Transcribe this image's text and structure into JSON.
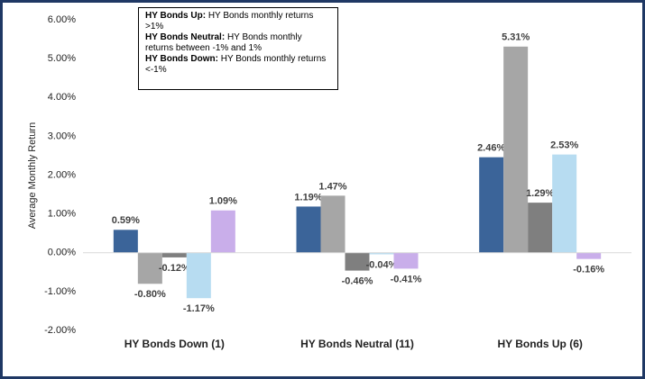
{
  "chart_data": {
    "type": "bar",
    "y_label": "Average Monthly Return",
    "categories": [
      "HY Bonds Down (1)",
      "HY Bonds Neutral (11)",
      "HY Bonds Up (6)"
    ],
    "series": [
      {
        "color": "#3b6499",
        "values": [
          0.59,
          1.19,
          2.46
        ],
        "value_labels": [
          "0.59%",
          "1.19%",
          "2.46%"
        ]
      },
      {
        "color": "#a6a6a6",
        "values": [
          -0.8,
          1.47,
          5.31
        ],
        "value_labels": [
          "-0.80%",
          "1.47%",
          "5.31%"
        ]
      },
      {
        "color": "#7f7f7f",
        "values": [
          -0.12,
          -0.46,
          1.29
        ],
        "value_labels": [
          "-0.12%",
          "-0.46%",
          "1.29%"
        ]
      },
      {
        "color": "#b7dcf1",
        "values": [
          -1.17,
          -0.04,
          2.53
        ],
        "value_labels": [
          "-1.17%",
          "-0.04%",
          "2.53%"
        ]
      },
      {
        "color": "#c9aeea",
        "values": [
          1.09,
          -0.41,
          -0.16
        ],
        "value_labels": [
          "1.09%",
          "-0.41%",
          "-0.16%"
        ]
      }
    ],
    "ylim": [
      -2,
      6
    ],
    "yticks": [
      {
        "value": -2,
        "label": "-2.00%"
      },
      {
        "value": -1,
        "label": "-1.00%"
      },
      {
        "value": 0,
        "label": "0.00%"
      },
      {
        "value": 1,
        "label": "1.00%"
      },
      {
        "value": 2,
        "label": "2.00%"
      },
      {
        "value": 3,
        "label": "3.00%"
      },
      {
        "value": 4,
        "label": "4.00%"
      },
      {
        "value": 5,
        "label": "5.00%"
      },
      {
        "value": 6,
        "label": "6.00%"
      }
    ],
    "grid": false,
    "annotation": [
      {
        "label": "HY Bonds Up:",
        "text": " HY Bonds monthly returns >1%"
      },
      {
        "label": "HY Bonds Neutral:",
        "text": " HY Bonds monthly returns between -1% and 1%"
      },
      {
        "label": "HY Bonds Down:",
        "text": " HY Bonds monthly returns <-1%"
      }
    ]
  }
}
